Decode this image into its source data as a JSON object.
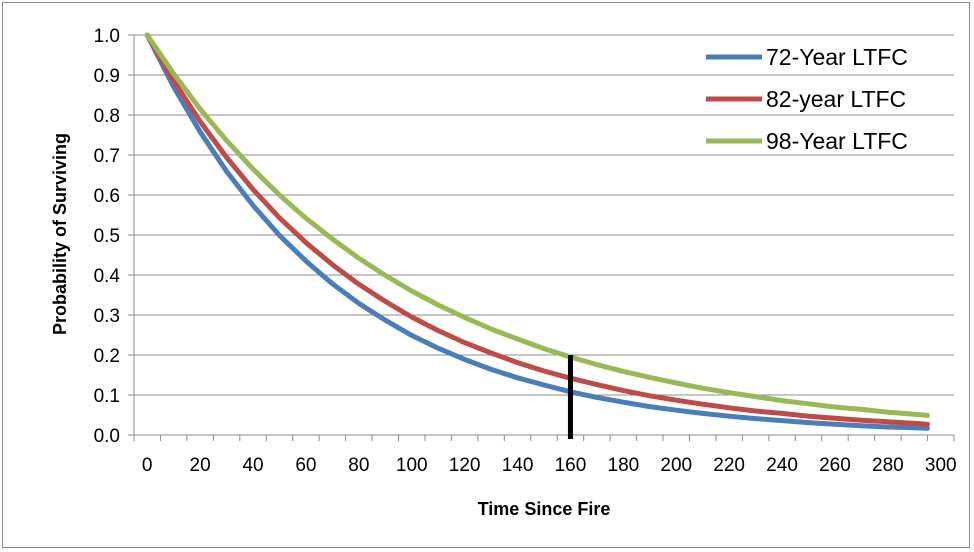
{
  "chart_data": {
    "type": "line",
    "title": "",
    "xlabel": "Time Since Fire",
    "ylabel": "Probability of Surviving",
    "xlim": [
      -5,
      305
    ],
    "ylim": [
      0,
      1.0
    ],
    "x_ticks": [
      0,
      20,
      40,
      60,
      80,
      100,
      120,
      140,
      160,
      180,
      200,
      220,
      240,
      260,
      280,
      300
    ],
    "x_tick_labels": [
      "0",
      "20",
      "40",
      "60",
      "80",
      "100",
      "120",
      "140",
      "160",
      "180",
      "200",
      "220",
      "240",
      "260",
      "280",
      "300"
    ],
    "y_ticks": [
      0.0,
      0.1,
      0.2,
      0.3,
      0.4,
      0.5,
      0.6,
      0.7,
      0.8,
      0.9,
      1.0
    ],
    "y_tick_labels": [
      "0.0",
      "0.1",
      "0.2",
      "0.3",
      "0.4",
      "0.5",
      "0.6",
      "0.7",
      "0.8",
      "0.9",
      "1.0"
    ],
    "grid": "horizontal",
    "legend_position": "top-right",
    "x": [
      0,
      10,
      20,
      30,
      40,
      50,
      60,
      70,
      80,
      90,
      100,
      110,
      120,
      130,
      140,
      150,
      160,
      170,
      180,
      190,
      200,
      210,
      220,
      230,
      240,
      250,
      260,
      270,
      280,
      290,
      295
    ],
    "series": [
      {
        "name": "72-Year LTFC",
        "color": "#4a7ebb",
        "values": [
          1.0,
          0.87,
          0.758,
          0.659,
          0.574,
          0.499,
          0.435,
          0.378,
          0.329,
          0.287,
          0.249,
          0.217,
          0.189,
          0.164,
          0.143,
          0.125,
          0.108,
          0.094,
          0.082,
          0.071,
          0.062,
          0.054,
          0.047,
          0.041,
          0.036,
          0.031,
          0.027,
          0.023,
          0.02,
          0.018,
          0.017
        ]
      },
      {
        "name": "82-year LTFC",
        "color": "#be4b48",
        "values": [
          1.0,
          0.885,
          0.784,
          0.694,
          0.614,
          0.543,
          0.481,
          0.426,
          0.377,
          0.334,
          0.295,
          0.261,
          0.231,
          0.205,
          0.181,
          0.16,
          0.142,
          0.126,
          0.111,
          0.098,
          0.087,
          0.077,
          0.068,
          0.06,
          0.054,
          0.047,
          0.042,
          0.037,
          0.033,
          0.029,
          0.027
        ]
      },
      {
        "name": "98-Year LTFC",
        "color": "#98b954",
        "values": [
          1.0,
          0.903,
          0.815,
          0.736,
          0.665,
          0.6,
          0.542,
          0.49,
          0.442,
          0.399,
          0.36,
          0.325,
          0.294,
          0.265,
          0.24,
          0.216,
          0.195,
          0.176,
          0.159,
          0.144,
          0.13,
          0.117,
          0.106,
          0.096,
          0.086,
          0.078,
          0.07,
          0.064,
          0.057,
          0.052,
          0.049
        ]
      }
    ],
    "annotations": [
      {
        "type": "vertical-line",
        "x": 160,
        "y_from": 0.0,
        "y_to": 0.2,
        "color": "#000000"
      }
    ]
  }
}
